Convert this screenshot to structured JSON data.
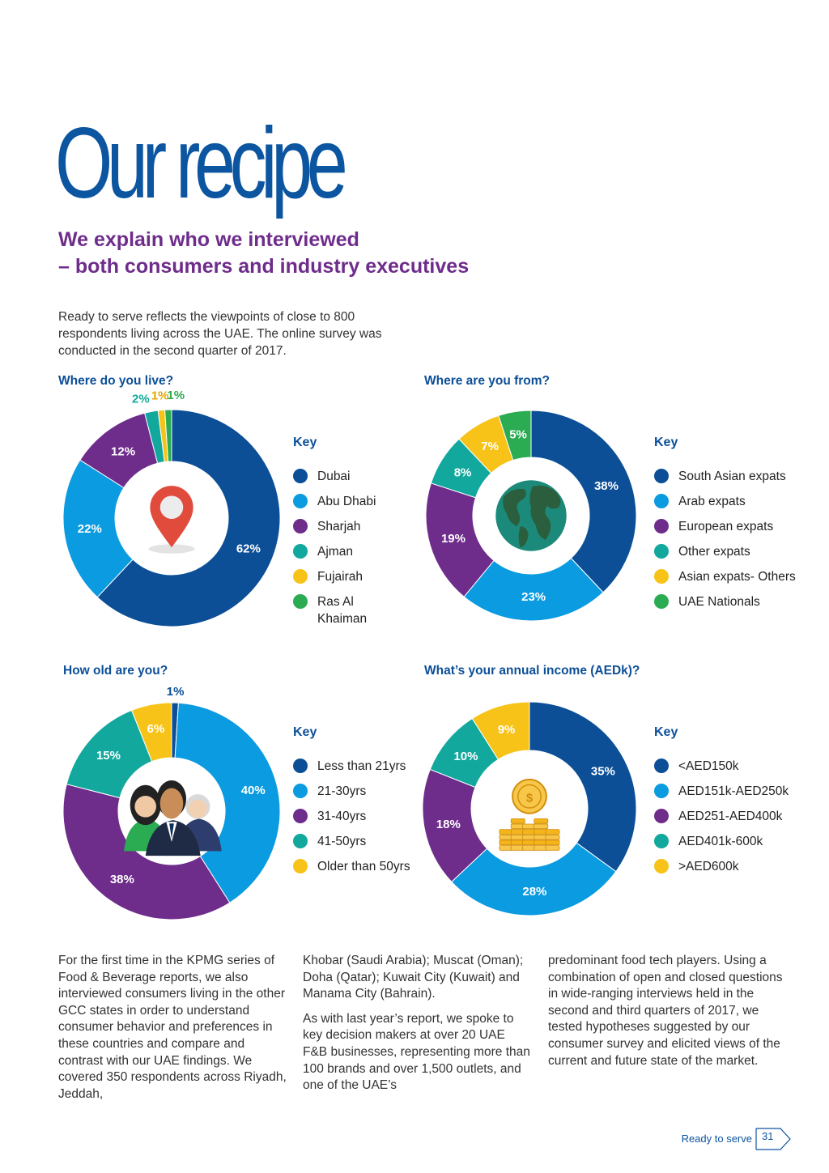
{
  "title": "Our recipe",
  "subtitle_line1": "We explain who we interviewed",
  "subtitle_line2": "– both consumers and industry executives",
  "intro": "Ready to serve reflects the viewpoints of close to 800 respondents living across the UAE. The online survey was conducted in the second quarter of 2017.",
  "key_label": "Key",
  "colors": {
    "dark_blue": "#0c4f97",
    "light_blue": "#0a9be0",
    "purple": "#6e2c8b",
    "teal": "#12a89d",
    "yellow": "#f7c318",
    "green": "#2bab52"
  },
  "chart_data": [
    {
      "type": "pie",
      "title": "Where do you live?",
      "icon": "location-pin-icon",
      "categories": [
        "Dubai",
        "Abu Dhabi",
        "Sharjah",
        "Ajman",
        "Fujairah",
        "Ras Al Khaiman"
      ],
      "values": [
        62,
        22,
        12,
        2,
        1,
        1
      ],
      "labels": [
        "62%",
        "22%",
        "12%",
        "2%",
        "1%",
        "1%"
      ],
      "unit": "%"
    },
    {
      "type": "pie",
      "title": "Where are you from?",
      "icon": "globe-icon",
      "categories": [
        "South Asian expats",
        "Arab expats",
        "European expats",
        "Other expats",
        "Asian expats- Others",
        "UAE Nationals"
      ],
      "values": [
        38,
        23,
        19,
        8,
        7,
        5
      ],
      "labels": [
        "38%",
        "23%",
        "19%",
        "8%",
        "7%",
        "5%"
      ],
      "unit": "%"
    },
    {
      "type": "pie",
      "title": "How old are you?",
      "icon": "people-icon",
      "categories": [
        "Less than 21yrs",
        "21-30yrs",
        "31-40yrs",
        "41-50yrs",
        "Older than 50yrs"
      ],
      "values": [
        1,
        40,
        38,
        15,
        6
      ],
      "labels": [
        "1%",
        "40%",
        "38%",
        "15%",
        "6%"
      ],
      "unit": "%"
    },
    {
      "type": "pie",
      "title": "What’s your annual income (AEDk)?",
      "icon": "coins-icon",
      "categories": [
        "<AED150k",
        "AED151k-AED250k",
        "AED251-AED400k",
        "AED401k-600k",
        ">AED600k"
      ],
      "values": [
        35,
        28,
        18,
        10,
        9
      ],
      "labels": [
        "35%",
        "28%",
        "18%",
        "10%",
        "9%"
      ],
      "unit": "%"
    }
  ],
  "col1": "For the first time in the KPMG series of Food & Beverage reports, we also interviewed consumers living in the other GCC states in order to understand consumer behavior and preferences in these countries and compare and contrast with our UAE findings. We covered 350 respondents across Riyadh, Jeddah,",
  "col2_p1": "Khobar (Saudi Arabia); Muscat (Oman); Doha (Qatar); Kuwait City (Kuwait) and Manama City (Bahrain).",
  "col2_p2": "As with last year’s report, we spoke to key decision makers at over 20 UAE F&B businesses, representing more than 100 brands and over 1,500 outlets, and one of the UAE’s",
  "col3": "predominant food tech players. Using a combination of open and closed questions in wide-ranging interviews held in the second and third quarters of 2017, we tested hypotheses suggested by our consumer survey and elicited views of the current and future state of the market.",
  "footer_label": "Ready to serve",
  "page_number": "31"
}
